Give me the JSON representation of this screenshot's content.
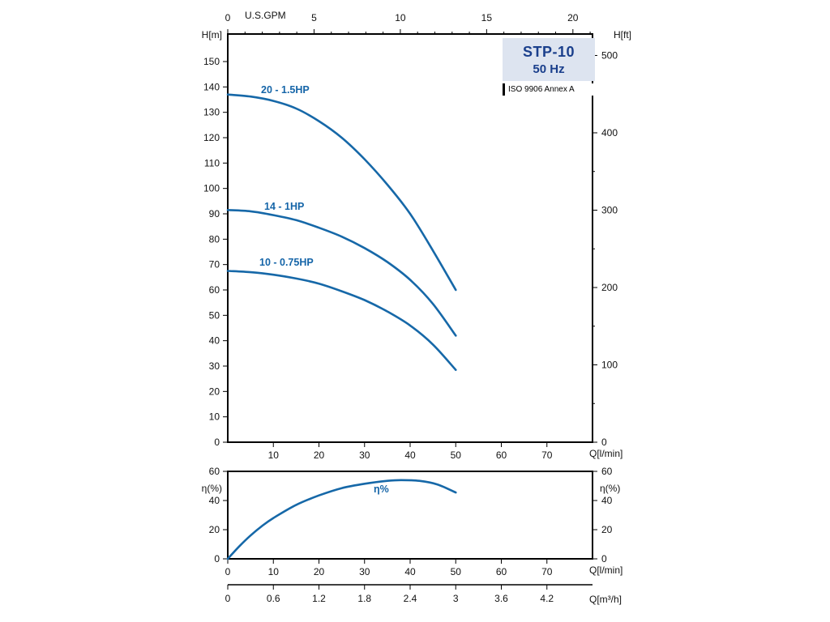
{
  "colors": {
    "curve": "#1668a8",
    "curve_label": "#1565a8",
    "title_text": "#1a3f8c",
    "title_bg": "#dde4f0",
    "axis": "#000000"
  },
  "title_box": {
    "model": "STP-10",
    "frequency": "50 Hz",
    "standard": "ISO 9906 Annex A"
  },
  "chart_data": [
    {
      "type": "line",
      "name": "head-capacity-curves",
      "title": "STP-10 50 Hz pump head curves",
      "grid": false,
      "legend": "inline-labels",
      "x_bottom": {
        "label": "Q[l/min]",
        "range": [
          0,
          80
        ],
        "major_ticks": [
          10,
          20,
          30,
          40,
          50,
          60,
          70
        ]
      },
      "x_top": {
        "label": "U.S.GPM",
        "range": [
          0,
          21.1
        ],
        "major_ticks": [
          0,
          5,
          10,
          15,
          20
        ],
        "minor_tick_step": 1,
        "lmin_per_gpm": 3.785
      },
      "y_left": {
        "label": "H[m]",
        "range": [
          0,
          161
        ],
        "major_ticks": [
          0,
          10,
          20,
          30,
          40,
          50,
          60,
          70,
          80,
          90,
          100,
          110,
          120,
          130,
          140,
          150
        ]
      },
      "y_right": {
        "label": "H[ft]",
        "range": [
          0,
          528
        ],
        "major_ticks": [
          0,
          100,
          200,
          300,
          400,
          500
        ],
        "minor_tick_step": 50,
        "m_per_ft": 0.3048
      },
      "series": [
        {
          "name": "20 - 1.5HP",
          "x": [
            0,
            5,
            10,
            15,
            20,
            25,
            30,
            35,
            40,
            45,
            50
          ],
          "y": [
            137,
            136.2,
            134.5,
            131.5,
            126.5,
            120,
            111.5,
            101.5,
            90,
            75.5,
            60
          ]
        },
        {
          "name": "14 - 1HP",
          "x": [
            0,
            5,
            10,
            15,
            20,
            25,
            30,
            35,
            40,
            45,
            50
          ],
          "y": [
            91.5,
            91,
            89.5,
            87.5,
            84.5,
            81,
            76.5,
            71,
            64,
            54.5,
            42
          ]
        },
        {
          "name": "10 - 0.75HP",
          "x": [
            0,
            5,
            10,
            15,
            20,
            25,
            30,
            35,
            40,
            45,
            50
          ],
          "y": [
            67.5,
            67,
            66,
            64.5,
            62.5,
            59.5,
            56,
            51.5,
            46,
            38.5,
            28.5
          ]
        }
      ]
    },
    {
      "type": "line",
      "name": "efficiency-curve",
      "grid": false,
      "x_bottom": {
        "label": "Q[l/min]",
        "range": [
          0,
          80
        ],
        "major_ticks": [
          0,
          10,
          20,
          30,
          40,
          50,
          60,
          70
        ]
      },
      "y_left": {
        "label": "η(%)",
        "range": [
          0,
          60
        ],
        "major_ticks": [
          0,
          20,
          40,
          60
        ]
      },
      "y_right": {
        "label": "η(%)",
        "range": [
          0,
          60
        ],
        "major_ticks": [
          0,
          20,
          40,
          60
        ]
      },
      "series": [
        {
          "name": "η%",
          "x": [
            0,
            2.5,
            5,
            7.5,
            10,
            15,
            20,
            25,
            30,
            35,
            38,
            42,
            46,
            50
          ],
          "y": [
            0,
            8.5,
            16,
            22.5,
            28,
            37,
            43.5,
            48.5,
            51.5,
            53.5,
            54,
            53.5,
            51,
            45.5
          ]
        }
      ]
    },
    {
      "type": "scale",
      "name": "flow-conversion-scale",
      "label": "Q[m³/h]",
      "lmin_per_m3h": 16.667,
      "ticks": [
        {
          "label": "0",
          "q_lmin": 0
        },
        {
          "label": "0.6",
          "q_lmin": 10
        },
        {
          "label": "1.2",
          "q_lmin": 20
        },
        {
          "label": "1.8",
          "q_lmin": 30
        },
        {
          "label": "2.4",
          "q_lmin": 40
        },
        {
          "label": "3",
          "q_lmin": 50
        },
        {
          "label": "3.6",
          "q_lmin": 60
        },
        {
          "label": "4.2",
          "q_lmin": 70
        }
      ]
    }
  ]
}
